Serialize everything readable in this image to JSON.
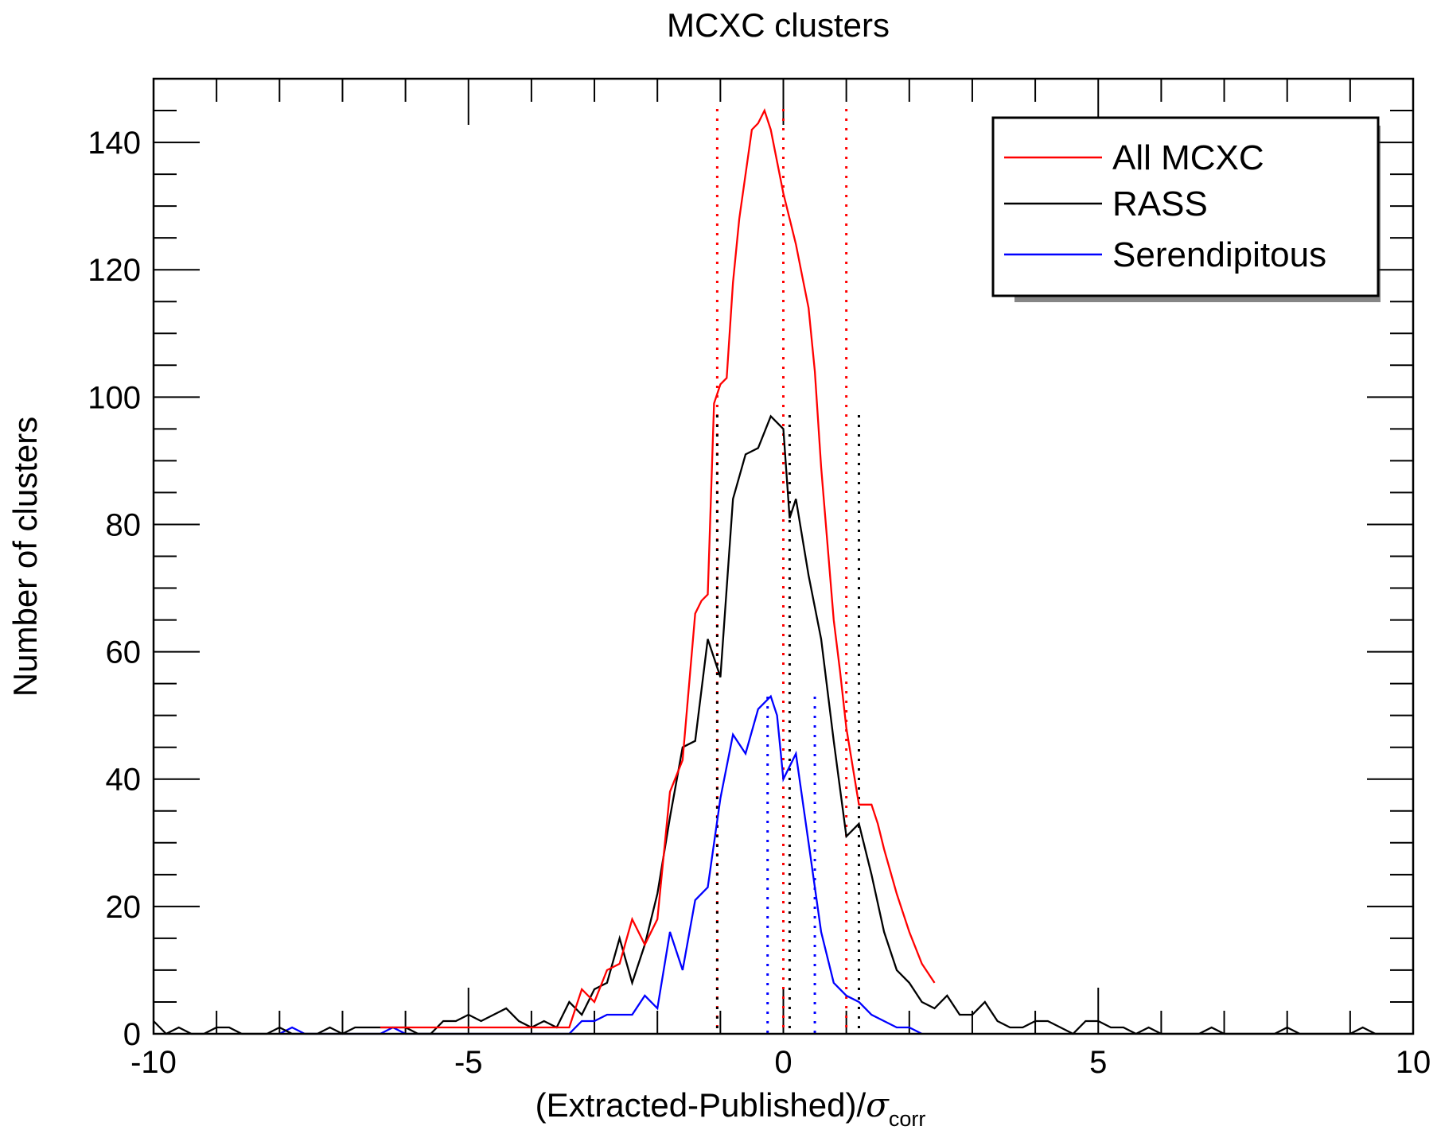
{
  "chart_data": {
    "type": "line",
    "title": "MCXC clusters",
    "xlabel_main": "(Extracted-Published)/",
    "xlabel_symbol": "σ",
    "xlabel_subscript": "corr",
    "ylabel": "Number of clusters",
    "xlim": [
      -10,
      10
    ],
    "ylim": [
      0,
      150
    ],
    "x_ticks": [
      -10,
      -5,
      0,
      5,
      10
    ],
    "x_tick_labels": [
      "-10",
      "-5",
      "0",
      "5",
      "10"
    ],
    "y_ticks": [
      0,
      20,
      40,
      60,
      80,
      100,
      120,
      140
    ],
    "y_tick_labels": [
      "0",
      "20",
      "40",
      "60",
      "80",
      "100",
      "120",
      "140"
    ],
    "legend_position": "top-right",
    "series": [
      {
        "name": "All MCXC",
        "color": "#ff0000",
        "x": [
          -6.4,
          -6.3,
          -6.2,
          -6.1,
          -6.0,
          -3.4,
          -3.2,
          -3.0,
          -2.8,
          -2.6,
          -2.4,
          -2.2,
          -2.0,
          -1.8,
          -1.6,
          -1.4,
          -1.3,
          -1.2,
          -1.1,
          -1.0,
          -0.9,
          -0.8,
          -0.7,
          -0.6,
          -0.5,
          -0.4,
          -0.3,
          -0.2,
          -0.1,
          0.0,
          0.1,
          0.2,
          0.3,
          0.4,
          0.5,
          0.6,
          0.7,
          0.8,
          0.9,
          1.0,
          1.1,
          1.2,
          1.3,
          1.4,
          1.5,
          1.6,
          1.8,
          2.0,
          2.2,
          2.4
        ],
        "y": [
          1,
          1,
          1,
          1,
          1,
          1,
          7,
          5,
          10,
          11,
          18,
          14,
          18,
          38,
          43,
          66,
          68,
          69,
          99,
          102,
          103,
          118,
          128,
          135,
          142,
          143,
          145,
          142,
          137,
          132,
          128,
          124,
          119,
          114,
          104,
          89,
          77,
          65,
          57,
          48,
          42,
          36,
          36,
          36,
          33,
          29,
          22,
          16,
          11,
          8
        ],
        "mean": 0.0,
        "sigma_lines": [
          -1.05,
          0.0,
          1.0
        ]
      },
      {
        "name": "RASS",
        "color": "#000000",
        "x": [
          -10.0,
          -9.8,
          -9.6,
          -9.4,
          -9.2,
          -9.0,
          -8.8,
          -8.6,
          -8.4,
          -8.2,
          -8.0,
          -7.8,
          -7.6,
          -7.4,
          -7.2,
          -7.0,
          -6.8,
          -6.6,
          -6.4,
          -6.2,
          -6.0,
          -5.8,
          -5.6,
          -5.4,
          -5.2,
          -5.0,
          -4.8,
          -4.6,
          -4.4,
          -4.2,
          -4.0,
          -3.8,
          -3.6,
          -3.4,
          -3.2,
          -3.0,
          -2.8,
          -2.6,
          -2.4,
          -2.2,
          -2.0,
          -1.8,
          -1.6,
          -1.4,
          -1.2,
          -1.0,
          -0.8,
          -0.6,
          -0.4,
          -0.2,
          0.0,
          0.1,
          0.2,
          0.4,
          0.6,
          0.8,
          1.0,
          1.2,
          1.4,
          1.6,
          1.8,
          2.0,
          2.2,
          2.4,
          2.6,
          2.8,
          3.0,
          3.2,
          3.4,
          3.6,
          3.8,
          4.0,
          4.2,
          4.4,
          4.6,
          4.8,
          5.0,
          5.2,
          5.4,
          5.6,
          5.8,
          6.0,
          6.2,
          6.4,
          6.6,
          6.8,
          7.0,
          7.2,
          7.4,
          7.6,
          7.8,
          8.0,
          8.2,
          8.4,
          8.6,
          8.8,
          9.0,
          9.2,
          9.4,
          9.6,
          9.8,
          10.0
        ],
        "y": [
          2,
          0,
          1,
          0,
          0,
          1,
          1,
          0,
          0,
          0,
          1,
          0,
          0,
          0,
          1,
          0,
          1,
          1,
          1,
          1,
          1,
          0,
          0,
          2,
          2,
          3,
          2,
          3,
          4,
          2,
          1,
          2,
          1,
          5,
          3,
          7,
          8,
          15,
          8,
          14,
          22,
          34,
          45,
          46,
          62,
          56,
          84,
          91,
          92,
          97,
          95,
          81,
          84,
          72,
          62,
          46,
          31,
          33,
          25,
          16,
          10,
          8,
          5,
          4,
          6,
          3,
          3,
          5,
          2,
          1,
          1,
          2,
          2,
          1,
          0,
          2,
          2,
          1,
          1,
          0,
          1,
          0,
          0,
          0,
          0,
          1,
          0,
          0,
          0,
          0,
          0,
          1,
          0,
          0,
          0,
          0,
          0,
          1,
          0,
          0,
          0,
          0
        ],
        "mean": 0.0,
        "sigma_lines": [
          -1.05,
          0.1,
          1.2
        ]
      },
      {
        "name": "Serendipitous",
        "color": "#0000ff",
        "x": [
          -8.0,
          -7.8,
          -7.6,
          -6.4,
          -6.2,
          -6.0,
          -3.4,
          -3.2,
          -3.0,
          -2.8,
          -2.6,
          -2.4,
          -2.2,
          -2.0,
          -1.8,
          -1.6,
          -1.4,
          -1.2,
          -1.0,
          -0.8,
          -0.6,
          -0.4,
          -0.2,
          -0.1,
          0.0,
          0.2,
          0.4,
          0.6,
          0.8,
          1.0,
          1.2,
          1.4,
          1.6,
          1.8,
          2.0,
          2.2
        ],
        "y": [
          0,
          1,
          0,
          0,
          1,
          0,
          0,
          2,
          2,
          3,
          3,
          3,
          6,
          4,
          16,
          10,
          21,
          23,
          37,
          47,
          44,
          51,
          53,
          50,
          40,
          44,
          30,
          16,
          8,
          6,
          5,
          3,
          2,
          1,
          1,
          0
        ],
        "mean": -0.1,
        "sigma_lines": [
          -0.25,
          0.5
        ]
      }
    ]
  }
}
